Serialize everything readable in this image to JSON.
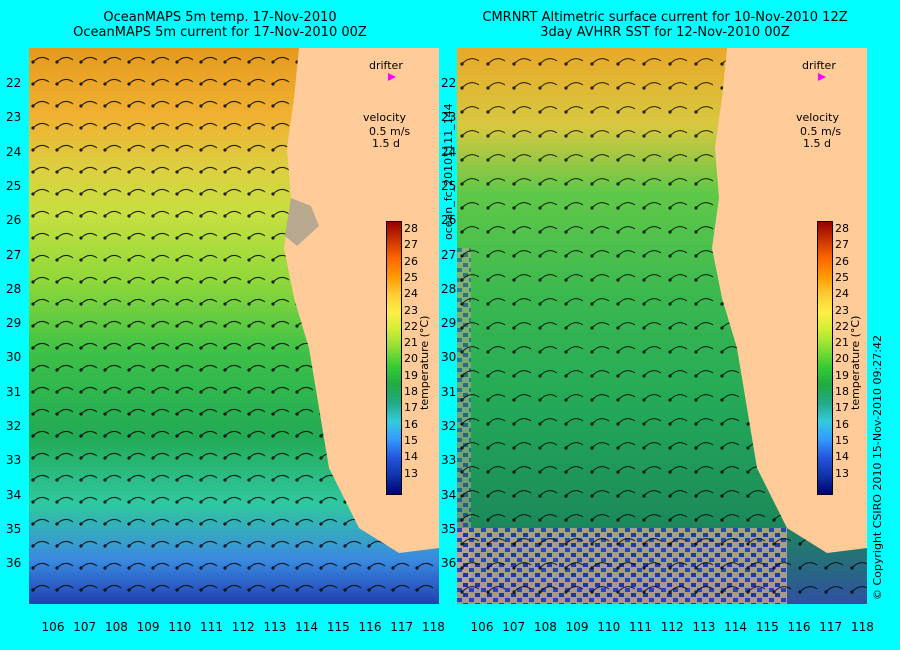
{
  "left_panel": {
    "title_line1": "OceanMAPS 5m temp. 17-Nov-2010",
    "title_line2": "OceanMAPS 5m current for 17-Nov-2010 00Z",
    "drifter_label": "drifter",
    "velocity_label": "velocity",
    "velocity_scale": "0.5 m/s",
    "velocity_time": "1.5 d",
    "colorbar_title": "temperature (°C)"
  },
  "right_panel": {
    "title_line1": "CMRNRT Altimetric surface current for 10-Nov-2010 12Z",
    "title_line2": "3day AVHRR SST for 12-Nov-2010 00Z",
    "drifter_label": "drifter",
    "velocity_label": "velocity",
    "velocity_scale": "0.5 m/s",
    "velocity_time": "1.5 d",
    "colorbar_title": "temperature (°C)"
  },
  "colorbar_ticks": [
    "28",
    "27",
    "26",
    "25",
    "24",
    "23",
    "22",
    "21",
    "20",
    "19",
    "18",
    "17",
    "16",
    "15",
    "14",
    "13"
  ],
  "latitude_labels": [
    "22",
    "23",
    "24",
    "25",
    "26",
    "27",
    "28",
    "29",
    "30",
    "31",
    "32",
    "33",
    "34",
    "35",
    "36"
  ],
  "longitude_labels": [
    "106",
    "107",
    "108",
    "109",
    "110",
    "111",
    "112",
    "113",
    "114",
    "115",
    "116",
    "117",
    "118"
  ],
  "file_label": "ocean_fc_20101111_144",
  "copyright": "© Copyright CSIRO 2010   15-Nov-2010 09:27:42",
  "colors": {
    "background": "#00ffff",
    "land": "#ffcc99",
    "drifter": "#ff00ff"
  }
}
